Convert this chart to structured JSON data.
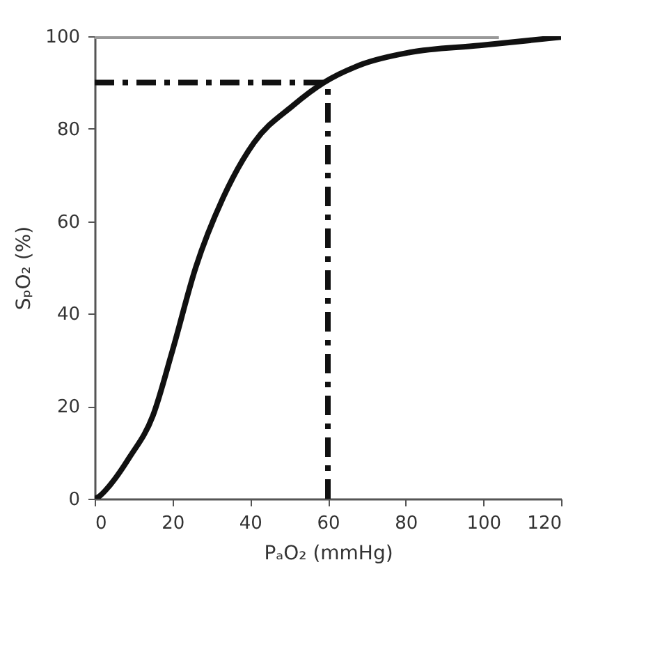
{
  "chart_data": {
    "type": "line",
    "xlabel": "PₐO₂ (mmHg)",
    "ylabel": "SₚO₂ (%)",
    "xlim": [
      0,
      120
    ],
    "xticks": [
      0,
      20,
      40,
      60,
      80,
      100,
      120
    ],
    "ylim": [
      0,
      100
    ],
    "yticks": [
      0,
      20,
      40,
      60,
      80,
      100
    ],
    "grid": false,
    "marker": "none",
    "series": [
      {
        "color": "#999999",
        "line_style": "solid",
        "x": [
          0,
          104
        ],
        "values": [
          100,
          100
        ]
      },
      {
        "color": "#111111",
        "line_style": "dashed",
        "x": [
          0,
          60
        ],
        "values": [
          90,
          90
        ]
      },
      {
        "color": "#111111",
        "line_style": "dashed",
        "x": [
          60,
          60
        ],
        "values": [
          0,
          90
        ]
      },
      {
        "color": "#111111",
        "line_style": "solid",
        "x": [
          0,
          0.8,
          4,
          9,
          15,
          20,
          26,
          33,
          41,
          51,
          59,
          69,
          81,
          99,
          120
        ],
        "values": [
          0,
          0.3,
          3,
          9,
          18,
          32,
          50,
          65,
          77,
          85,
          90,
          94,
          96.5,
          98,
          99.8
        ]
      }
    ]
  }
}
